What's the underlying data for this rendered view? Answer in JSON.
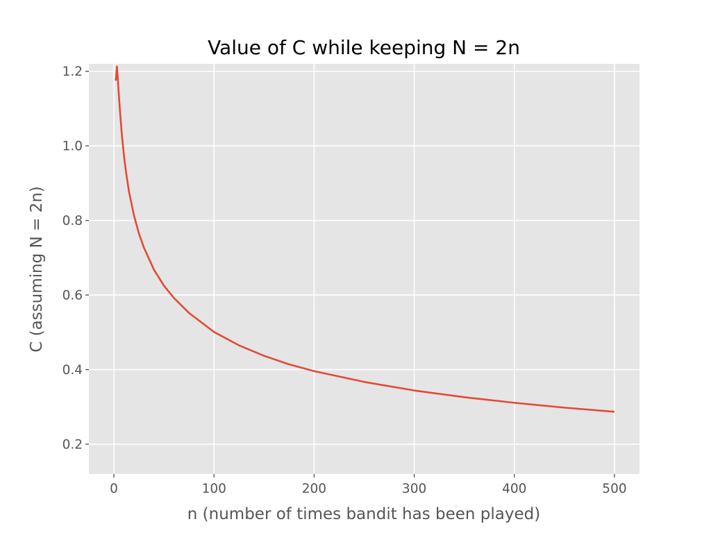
{
  "chart_data": {
    "type": "line",
    "title": "Value of C while keeping N = 2n",
    "xlabel": "n (number of times bandit has been played)",
    "ylabel": "C (assuming N = 2n)",
    "xlim": [
      -25,
      525
    ],
    "ylim": [
      0.12,
      1.22
    ],
    "xticks": [
      0,
      100,
      200,
      300,
      400,
      500
    ],
    "yticks": [
      0.2,
      0.4,
      0.6,
      0.8,
      1.0,
      1.2
    ],
    "ytick_labels": [
      "0.2",
      "0.4",
      "0.6",
      "0.8",
      "1.0",
      "1.2"
    ],
    "grid": true,
    "style": "ggplot",
    "series": [
      {
        "color": "#E24A33",
        "x": [
          1,
          2,
          3,
          4,
          5,
          6,
          8,
          10,
          12,
          15,
          20,
          25,
          30,
          40,
          50,
          60,
          75,
          100,
          125,
          150,
          175,
          200,
          250,
          300,
          350,
          400,
          450,
          500
        ],
        "y": [
          1.177,
          1.177,
          1.213,
          1.177,
          1.135,
          1.096,
          1.028,
          0.975,
          0.932,
          0.878,
          0.814,
          0.765,
          0.727,
          0.668,
          0.625,
          0.592,
          0.552,
          0.501,
          0.465,
          0.437,
          0.414,
          0.396,
          0.367,
          0.344,
          0.326,
          0.311,
          0.298,
          0.287
        ]
      }
    ]
  }
}
